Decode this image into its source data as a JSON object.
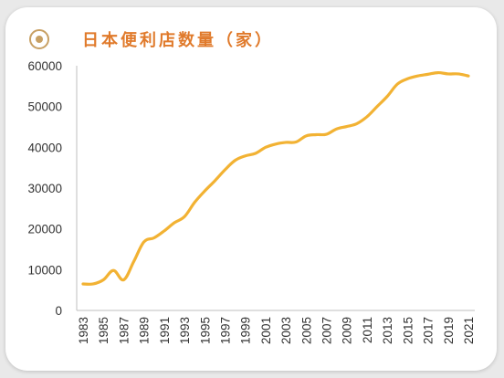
{
  "title": "日本便利店数量（家）",
  "colors": {
    "line": "#f2b233",
    "accent": "#c8a063",
    "title": "#e07a2b",
    "axis": "#bfbfbf"
  },
  "icons": {
    "title_marker": "circle-dot-icon"
  },
  "chart_data": {
    "type": "line",
    "title": "日本便利店数量（家）",
    "xlabel": "",
    "ylabel": "",
    "ylim": [
      0,
      60000
    ],
    "y_ticks": [
      0,
      10000,
      20000,
      30000,
      40000,
      50000,
      60000
    ],
    "x_tick_labels": [
      "1983",
      "1985",
      "1987",
      "1989",
      "1991",
      "1993",
      "1995",
      "1997",
      "1999",
      "2001",
      "2003",
      "2005",
      "2007",
      "2009",
      "2011",
      "2013",
      "2015",
      "2017",
      "2019",
      "2021"
    ],
    "grid": false,
    "legend": "none",
    "x": [
      1983,
      1984,
      1985,
      1986,
      1987,
      1988,
      1989,
      1990,
      1991,
      1992,
      1993,
      1994,
      1995,
      1996,
      1997,
      1998,
      1999,
      2000,
      2001,
      2002,
      2003,
      2004,
      2005,
      2006,
      2007,
      2008,
      2009,
      2010,
      2011,
      2012,
      2013,
      2014,
      2015,
      2016,
      2017,
      2018,
      2019,
      2020,
      2021
    ],
    "series": [
      {
        "values": [
          6500,
          6500,
          7500,
          9800,
          7500,
          12000,
          16800,
          17800,
          19500,
          21500,
          23000,
          26500,
          29300,
          31800,
          34500,
          36800,
          37900,
          38500,
          40000,
          40800,
          41200,
          41300,
          42800,
          43100,
          43200,
          44500,
          45100,
          45800,
          47500,
          50000,
          52500,
          55500,
          56800,
          57500,
          57900,
          58300,
          58000,
          58000,
          57500
        ]
      }
    ]
  }
}
